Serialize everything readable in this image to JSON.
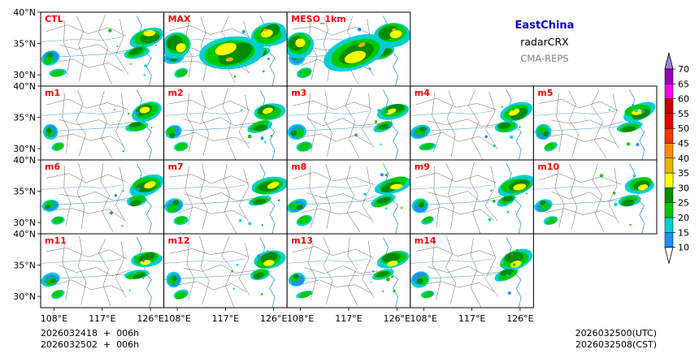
{
  "chart_data": {
    "type": "heatmap",
    "title": "EastChina",
    "subtitle": "radarCRX",
    "source": "CMA-REPS",
    "panels": [
      "CTL",
      "MAX",
      "MESO_1km",
      "m1",
      "m2",
      "m3",
      "m4",
      "m5",
      "m6",
      "m7",
      "m8",
      "m9",
      "m10",
      "m11",
      "m12",
      "m13",
      "m14"
    ],
    "panel_rows": [
      [
        "CTL",
        "MAX",
        "MESO_1km"
      ],
      [
        "m1",
        "m2",
        "m3",
        "m4",
        "m5"
      ],
      [
        "m6",
        "m7",
        "m8",
        "m9",
        "m10"
      ],
      [
        "m11",
        "m12",
        "m13",
        "m14"
      ]
    ],
    "lat_ticks": [
      "40°N",
      "35°N",
      "30°N"
    ],
    "lat_values": [
      40,
      35,
      30
    ],
    "lon_ticks": [
      "108°E",
      "117°E",
      "126°E"
    ],
    "lon_values": [
      108,
      117,
      126
    ],
    "lat_range": [
      28.2,
      40
    ],
    "lon_range": [
      105.5,
      128.5
    ],
    "colorbar": {
      "levels": [
        10,
        15,
        20,
        25,
        30,
        35,
        40,
        45,
        50,
        55,
        60,
        65,
        70
      ],
      "labels": [
        "10",
        "15",
        "20",
        "25",
        "30",
        "35",
        "40",
        "45",
        "50",
        "55",
        "60",
        "65",
        "70"
      ],
      "colors": [
        "#1e90ff",
        "#00ced1",
        "#00c800",
        "#008c00",
        "#ffff00",
        "#e6b400",
        "#ff8c00",
        "#ff3200",
        "#e60000",
        "#c80000",
        "#ff00f0",
        "#9600b4",
        "#a47ed8"
      ],
      "extend": "both"
    },
    "init_lines": [
      "2026032418  +  006h",
      "2026032502  +  006h"
    ],
    "valid_lines": [
      "2026032500(UTC)",
      "2026032508(CST)"
    ]
  },
  "style": {
    "title_color": "#0000cc",
    "subtitle_color": "#000000",
    "source_color": "#808080",
    "panel_label_color": "#ff0000",
    "border_color": "#000000",
    "coast_color": "#4aa3df",
    "province_color": "#555555"
  }
}
